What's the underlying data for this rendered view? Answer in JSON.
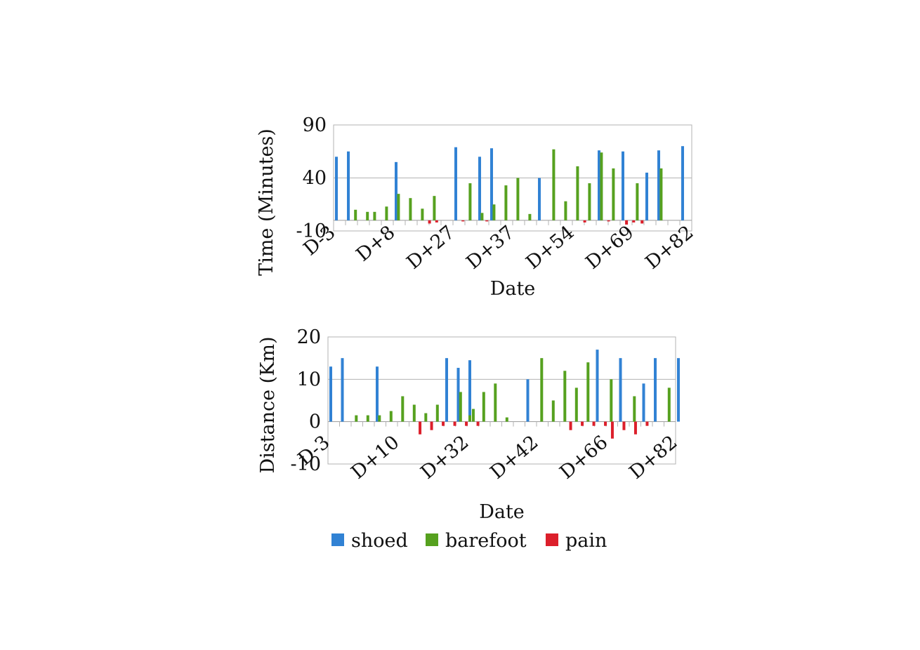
{
  "colors": {
    "shoed": "#3182d4",
    "barefoot": "#56a11f",
    "pain": "#dc1f2b"
  },
  "legend": [
    {
      "name": "shoed",
      "color": "#3182d4"
    },
    {
      "name": "barefoot",
      "color": "#56a11f"
    },
    {
      "name": "pain",
      "color": "#dc1f2b"
    }
  ],
  "chart_data": [
    {
      "type": "bar",
      "title": "",
      "xlabel": "Date",
      "ylabel": "Time (Minutes)",
      "ylim": [
        -10,
        90
      ],
      "yticks": [
        -10,
        40,
        90
      ],
      "gridlines": [
        0,
        40,
        90
      ],
      "slots": 30,
      "xticklabels": [
        {
          "label": "D-3",
          "slot": 0
        },
        {
          "label": "D+8",
          "slot": 5
        },
        {
          "label": "D+27",
          "slot": 10
        },
        {
          "label": "D+37",
          "slot": 15
        },
        {
          "label": "D+54",
          "slot": 20
        },
        {
          "label": "D+69",
          "slot": 25
        },
        {
          "label": "D+82",
          "slot": 30
        }
      ],
      "series": [
        {
          "name": "shoed",
          "values": [
            60,
            65,
            0,
            0,
            0,
            55,
            0,
            0,
            0,
            0,
            0,
            0,
            0,
            0,
            0,
            0,
            0,
            0,
            0,
            0,
            0,
            0,
            0,
            0,
            0,
            0,
            0,
            0,
            0,
            0
          ],
          "extra": [
            [
              10,
              69
            ],
            [
              12,
              60
            ],
            [
              13,
              68
            ],
            [
              17,
              40
            ],
            [
              22,
              66
            ],
            [
              24,
              65
            ],
            [
              26,
              45
            ],
            [
              27,
              66
            ],
            [
              29,
              70
            ]
          ]
        },
        {
          "name": "barefoot",
          "values": [],
          "extra": [
            [
              1.6,
              10
            ],
            [
              2.6,
              8
            ],
            [
              3.2,
              8
            ],
            [
              4.2,
              13
            ],
            [
              5.2,
              25
            ],
            [
              6.2,
              21
            ],
            [
              7.2,
              11
            ],
            [
              8.2,
              23
            ],
            [
              11.2,
              35
            ],
            [
              12.2,
              7
            ],
            [
              13.2,
              15
            ],
            [
              14.2,
              33
            ],
            [
              15.2,
              40
            ],
            [
              16.2,
              6
            ],
            [
              18.2,
              67
            ],
            [
              19.2,
              18
            ],
            [
              20.2,
              51
            ],
            [
              21.2,
              35
            ],
            [
              22.2,
              64
            ],
            [
              23.2,
              49
            ],
            [
              25.2,
              35
            ],
            [
              27.2,
              49
            ]
          ]
        },
        {
          "name": "pain",
          "values": [],
          "extra": [
            [
              7.8,
              -3
            ],
            [
              8.4,
              -2
            ],
            [
              10.6,
              -1
            ],
            [
              12.6,
              -1
            ],
            [
              20.8,
              -2
            ],
            [
              22.8,
              -1
            ],
            [
              24.3,
              -4
            ],
            [
              24.9,
              -2
            ],
            [
              25.6,
              -3
            ]
          ]
        }
      ]
    },
    {
      "type": "bar",
      "title": "",
      "xlabel": "Date",
      "ylabel": "Distance (Km)",
      "ylim": [
        -10,
        20
      ],
      "yticks": [
        -10,
        0,
        10,
        20
      ],
      "gridlines": [
        0,
        10,
        20
      ],
      "slots": 30,
      "xticklabels": [
        {
          "label": "D-3",
          "slot": 0
        },
        {
          "label": "D+10",
          "slot": 6
        },
        {
          "label": "D+32",
          "slot": 12
        },
        {
          "label": "D+42",
          "slot": 18
        },
        {
          "label": "D+66",
          "slot": 24
        },
        {
          "label": "D+82",
          "slot": 30
        }
      ],
      "series": [
        {
          "name": "shoed",
          "values": [],
          "extra": [
            [
              0,
              13
            ],
            [
              1,
              15
            ],
            [
              4,
              13
            ],
            [
              10,
              15
            ],
            [
              11,
              12.7
            ],
            [
              12,
              14.5
            ],
            [
              17,
              10
            ],
            [
              23,
              17
            ],
            [
              25,
              15
            ],
            [
              27,
              9
            ],
            [
              28,
              15
            ],
            [
              30,
              15
            ]
          ]
        },
        {
          "name": "barefoot",
          "values": [],
          "extra": [
            [
              2.2,
              1.5
            ],
            [
              3.2,
              1.5
            ],
            [
              4.2,
              1.5
            ],
            [
              5.2,
              2.5
            ],
            [
              6.2,
              6
            ],
            [
              7.2,
              4
            ],
            [
              8.2,
              2
            ],
            [
              9.2,
              4
            ],
            [
              11.2,
              7
            ],
            [
              12,
              1.5
            ],
            [
              12.3,
              3
            ],
            [
              13.2,
              7
            ],
            [
              14.2,
              9
            ],
            [
              15.2,
              1
            ],
            [
              18.2,
              15
            ],
            [
              19.2,
              5
            ],
            [
              20.2,
              12
            ],
            [
              21.2,
              8
            ],
            [
              22.2,
              14
            ],
            [
              24.2,
              10
            ],
            [
              26.2,
              6
            ],
            [
              29.2,
              8
            ]
          ]
        },
        {
          "name": "pain",
          "values": [],
          "extra": [
            [
              7.7,
              -3
            ],
            [
              8.7,
              -2
            ],
            [
              9.7,
              -1
            ],
            [
              10.7,
              -1
            ],
            [
              11.7,
              -1
            ],
            [
              12.7,
              -1
            ],
            [
              20.7,
              -2
            ],
            [
              21.7,
              -1
            ],
            [
              22.7,
              -1
            ],
            [
              23.7,
              -1
            ],
            [
              24.3,
              -4
            ],
            [
              25.3,
              -2
            ],
            [
              26.3,
              -3
            ],
            [
              27.3,
              -1
            ]
          ]
        }
      ]
    }
  ]
}
